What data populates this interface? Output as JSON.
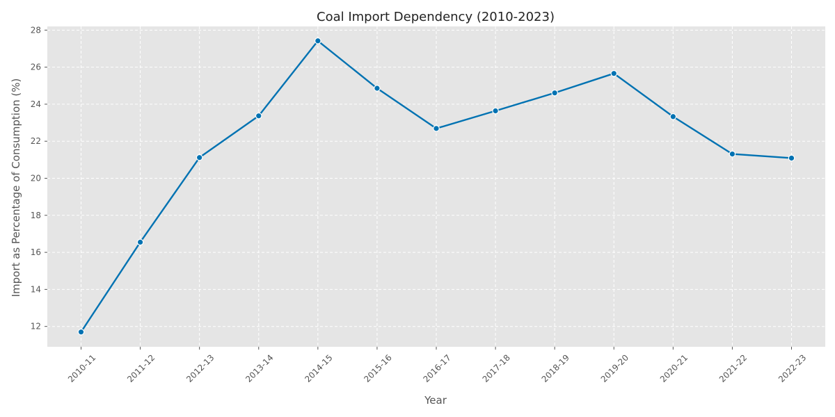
{
  "chart_data": {
    "type": "line",
    "title": "Coal Import Dependency (2010-2023)",
    "xlabel": "Year",
    "ylabel": "Import as Percentage of Consumption (%)",
    "categories": [
      "2010-11",
      "2011-12",
      "2012-13",
      "2013-14",
      "2014-15",
      "2015-16",
      "2016-17",
      "2017-18",
      "2018-19",
      "2019-20",
      "2020-21",
      "2021-22",
      "2022-23"
    ],
    "series": [
      {
        "values": [
          11.7,
          16.55,
          21.12,
          23.37,
          27.42,
          24.86,
          22.69,
          23.64,
          24.61,
          25.66,
          23.33,
          21.31,
          21.09
        ]
      }
    ],
    "ylim": [
      10.9,
      28.2
    ],
    "yticks": [
      12,
      14,
      16,
      18,
      20,
      22,
      24,
      26,
      28
    ],
    "grid": true,
    "legend": "none",
    "line_color": "#0072b2",
    "background_color": "#e5e5e5",
    "grid_color": "#ffffff"
  }
}
